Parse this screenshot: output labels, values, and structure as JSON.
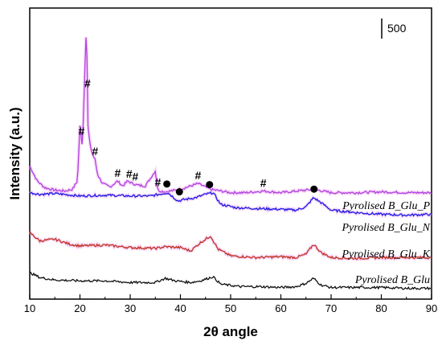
{
  "chart_data": {
    "type": "line",
    "title": "",
    "xlabel": "2θ angle",
    "ylabel": "Intensity (a.u.)",
    "xlim": [
      10,
      90
    ],
    "x_ticks": [
      10,
      20,
      30,
      40,
      50,
      60,
      70,
      80,
      90
    ],
    "y_ticks_shown": false,
    "grid": false,
    "scale_bar": {
      "label": "500",
      "value": 500
    },
    "series": [
      {
        "name": "Pyrolised B_Glu_P",
        "color": "#b040e0",
        "marker_label": "#",
        "baseline_offset": 1500,
        "x": [
          10,
          11.5,
          13,
          15,
          17,
          18.5,
          19.5,
          20.0,
          20.5,
          21.0,
          21.3,
          21.6,
          22.0,
          22.5,
          23.0,
          23.5,
          24.5,
          26,
          27.5,
          28.5,
          29.5,
          30.5,
          31.5,
          33,
          35.0,
          35.5,
          36.0,
          37,
          40,
          43.5,
          46,
          50,
          53,
          56.5,
          60,
          66.5,
          70,
          75,
          80,
          85,
          90
        ],
        "y": [
          1650,
          1560,
          1520,
          1505,
          1500,
          1510,
          1560,
          1890,
          1760,
          2250,
          2520,
          1890,
          1780,
          1720,
          1690,
          1600,
          1545,
          1525,
          1560,
          1530,
          1560,
          1545,
          1535,
          1530,
          1620,
          1505,
          1500,
          1495,
          1510,
          1545,
          1510,
          1490,
          1490,
          1500,
          1490,
          1510,
          1490,
          1490,
          1495,
          1490,
          1490
        ],
        "peaks": [
          {
            "x": 20.3,
            "label": "#"
          },
          {
            "x": 21.5,
            "label": "#"
          },
          {
            "x": 23.0,
            "label": "#"
          },
          {
            "x": 27.5,
            "label": "#"
          },
          {
            "x": 29.8,
            "label": "#"
          },
          {
            "x": 31.0,
            "label": "#"
          },
          {
            "x": 35.5,
            "label": "#"
          },
          {
            "x": 43.5,
            "label": "#"
          },
          {
            "x": 56.5,
            "label": "#"
          }
        ]
      },
      {
        "name": "Pyrolised B_Glu_N",
        "color": "#1a1ae6",
        "marker_label": "●",
        "baseline_offset": 1000,
        "x": [
          10,
          12,
          15,
          20,
          25,
          30,
          34,
          37.5,
          39.5,
          41,
          43,
          45,
          46.5,
          48,
          51,
          55,
          60,
          63,
          65,
          66.5,
          68,
          70,
          75,
          80,
          85,
          90
        ],
        "y": [
          1490,
          1480,
          1485,
          1470,
          1475,
          1470,
          1470,
          1490,
          1440,
          1450,
          1460,
          1480,
          1490,
          1420,
          1400,
          1395,
          1390,
          1385,
          1405,
          1460,
          1430,
          1385,
          1370,
          1360,
          1355,
          1360
        ],
        "peaks": [
          {
            "x": 37.3,
            "label": "●"
          },
          {
            "x": 39.8,
            "label": "●"
          },
          {
            "x": 45.8,
            "label": "●"
          },
          {
            "x": 66.6,
            "label": "●"
          }
        ]
      },
      {
        "name": "Pyrolised B_Glu_K",
        "color": "#c0321e",
        "baseline_offset": 500,
        "x": [
          10,
          12,
          15,
          18,
          20,
          25,
          30,
          35,
          37,
          40,
          42,
          44,
          46,
          47.5,
          50,
          55,
          60,
          63,
          65,
          66.5,
          68,
          70,
          75,
          80,
          85,
          90
        ],
        "y": [
          1250,
          1200,
          1210,
          1180,
          1170,
          1175,
          1160,
          1155,
          1165,
          1160,
          1140,
          1190,
          1230,
          1150,
          1110,
          1100,
          1105,
          1100,
          1120,
          1180,
          1130,
          1100,
          1095,
          1100,
          1100,
          1100
        ],
        "peaks": []
      },
      {
        "name": "Pyrolised B_Glu",
        "color": "#111111",
        "baseline_offset": 0,
        "x": [
          10,
          12,
          15,
          20,
          25,
          30,
          35,
          37,
          39,
          42,
          44,
          46.5,
          48,
          52,
          56,
          60,
          63,
          65,
          66.5,
          68,
          70,
          75,
          80,
          85,
          90
        ],
        "y": [
          1010,
          980,
          965,
          960,
          960,
          950,
          950,
          975,
          960,
          950,
          960,
          985,
          940,
          925,
          925,
          920,
          925,
          945,
          975,
          935,
          920,
          920,
          920,
          915,
          915
        ],
        "peaks": []
      }
    ],
    "series_labels": [
      "Pyrolised B_Glu_P",
      "Pyrolised B_Glu_N",
      "Pyrolised B_Glu_K",
      "Pyrolised B_Glu"
    ]
  }
}
